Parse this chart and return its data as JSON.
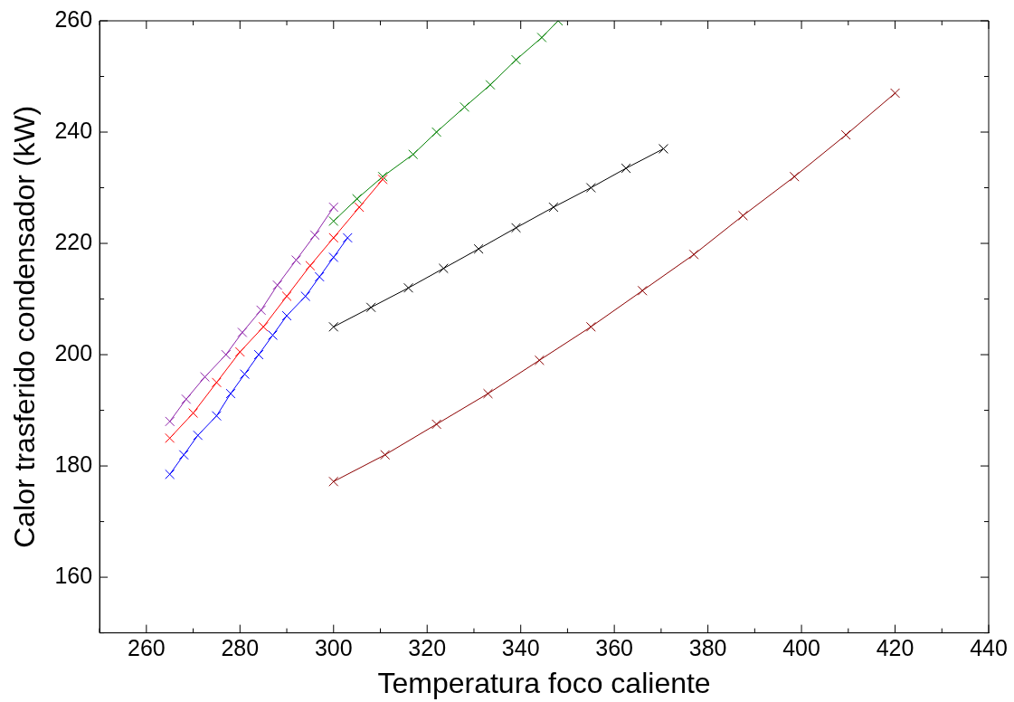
{
  "chart_data": {
    "type": "line",
    "xlabel": "Temperatura foco caliente",
    "ylabel": "Calor trasferido condensador (kW)",
    "xlim": [
      250,
      440
    ],
    "ylim": [
      150,
      260
    ],
    "xticks": [
      {
        "value": 250,
        "label": null
      },
      260,
      {
        "value": 270,
        "label": null
      },
      280,
      {
        "value": 290,
        "label": null
      },
      300,
      {
        "value": 310,
        "label": null
      },
      320,
      {
        "value": 330,
        "label": null
      },
      340,
      {
        "value": 350,
        "label": null
      },
      360,
      {
        "value": 370,
        "label": null
      },
      380,
      {
        "value": 390,
        "label": null
      },
      400,
      {
        "value": 410,
        "label": null
      },
      420,
      {
        "value": 430,
        "label": null
      },
      440
    ],
    "yticks": [
      {
        "value": 150,
        "label": null
      },
      160,
      {
        "value": 170,
        "label": null
      },
      180,
      {
        "value": 190,
        "label": null
      },
      200,
      {
        "value": 210,
        "label": null
      },
      220,
      {
        "value": 230,
        "label": null
      },
      240,
      {
        "value": 250,
        "label": null
      },
      260
    ],
    "grid": false,
    "legend": false,
    "marker": "cross",
    "line_style": "solid",
    "series": [
      {
        "color": "#0000ff",
        "x": [
          265,
          268,
          271,
          275,
          278,
          281,
          284,
          287,
          290,
          294,
          297,
          300,
          303
        ],
        "values": [
          178.5,
          182,
          185.5,
          189,
          193,
          196.5,
          200,
          203.5,
          207,
          210.5,
          214,
          217.5,
          221
        ]
      },
      {
        "color": "#ff0000",
        "x": [
          265,
          270,
          275,
          280,
          285,
          290,
          295,
          300,
          305.5,
          310.5
        ],
        "values": [
          185,
          189.5,
          195,
          200.5,
          205,
          210.5,
          216,
          221,
          226.5,
          231.5
        ]
      },
      {
        "color": "#8e24aa",
        "x": [
          265,
          268.5,
          272.5,
          277,
          280.5,
          284.5,
          288,
          292,
          296,
          300
        ],
        "values": [
          188,
          192,
          196,
          200,
          204,
          208,
          212.5,
          217,
          221.5,
          226.5
        ]
      },
      {
        "color": "#008000",
        "x": [
          300,
          305,
          310.5,
          317,
          322,
          328,
          333.5,
          339,
          344.5,
          348
        ],
        "values": [
          224,
          228,
          232,
          236,
          240,
          244.5,
          248.5,
          253,
          257,
          260
        ]
      },
      {
        "color": "#000000",
        "x": [
          300,
          308,
          316,
          323.5,
          331,
          339,
          347,
          355,
          362.5,
          370.5
        ],
        "values": [
          205,
          208.5,
          212,
          215.5,
          219,
          222.8,
          226.5,
          230,
          233.5,
          237
        ]
      },
      {
        "color": "#8b0000",
        "x": [
          300,
          311,
          322,
          333,
          344,
          355,
          366,
          377,
          387.5,
          398.5,
          409.5,
          420
        ],
        "values": [
          177.2,
          182,
          187.5,
          193,
          199,
          205,
          211.5,
          218,
          225,
          232,
          239.5,
          247
        ]
      }
    ]
  }
}
